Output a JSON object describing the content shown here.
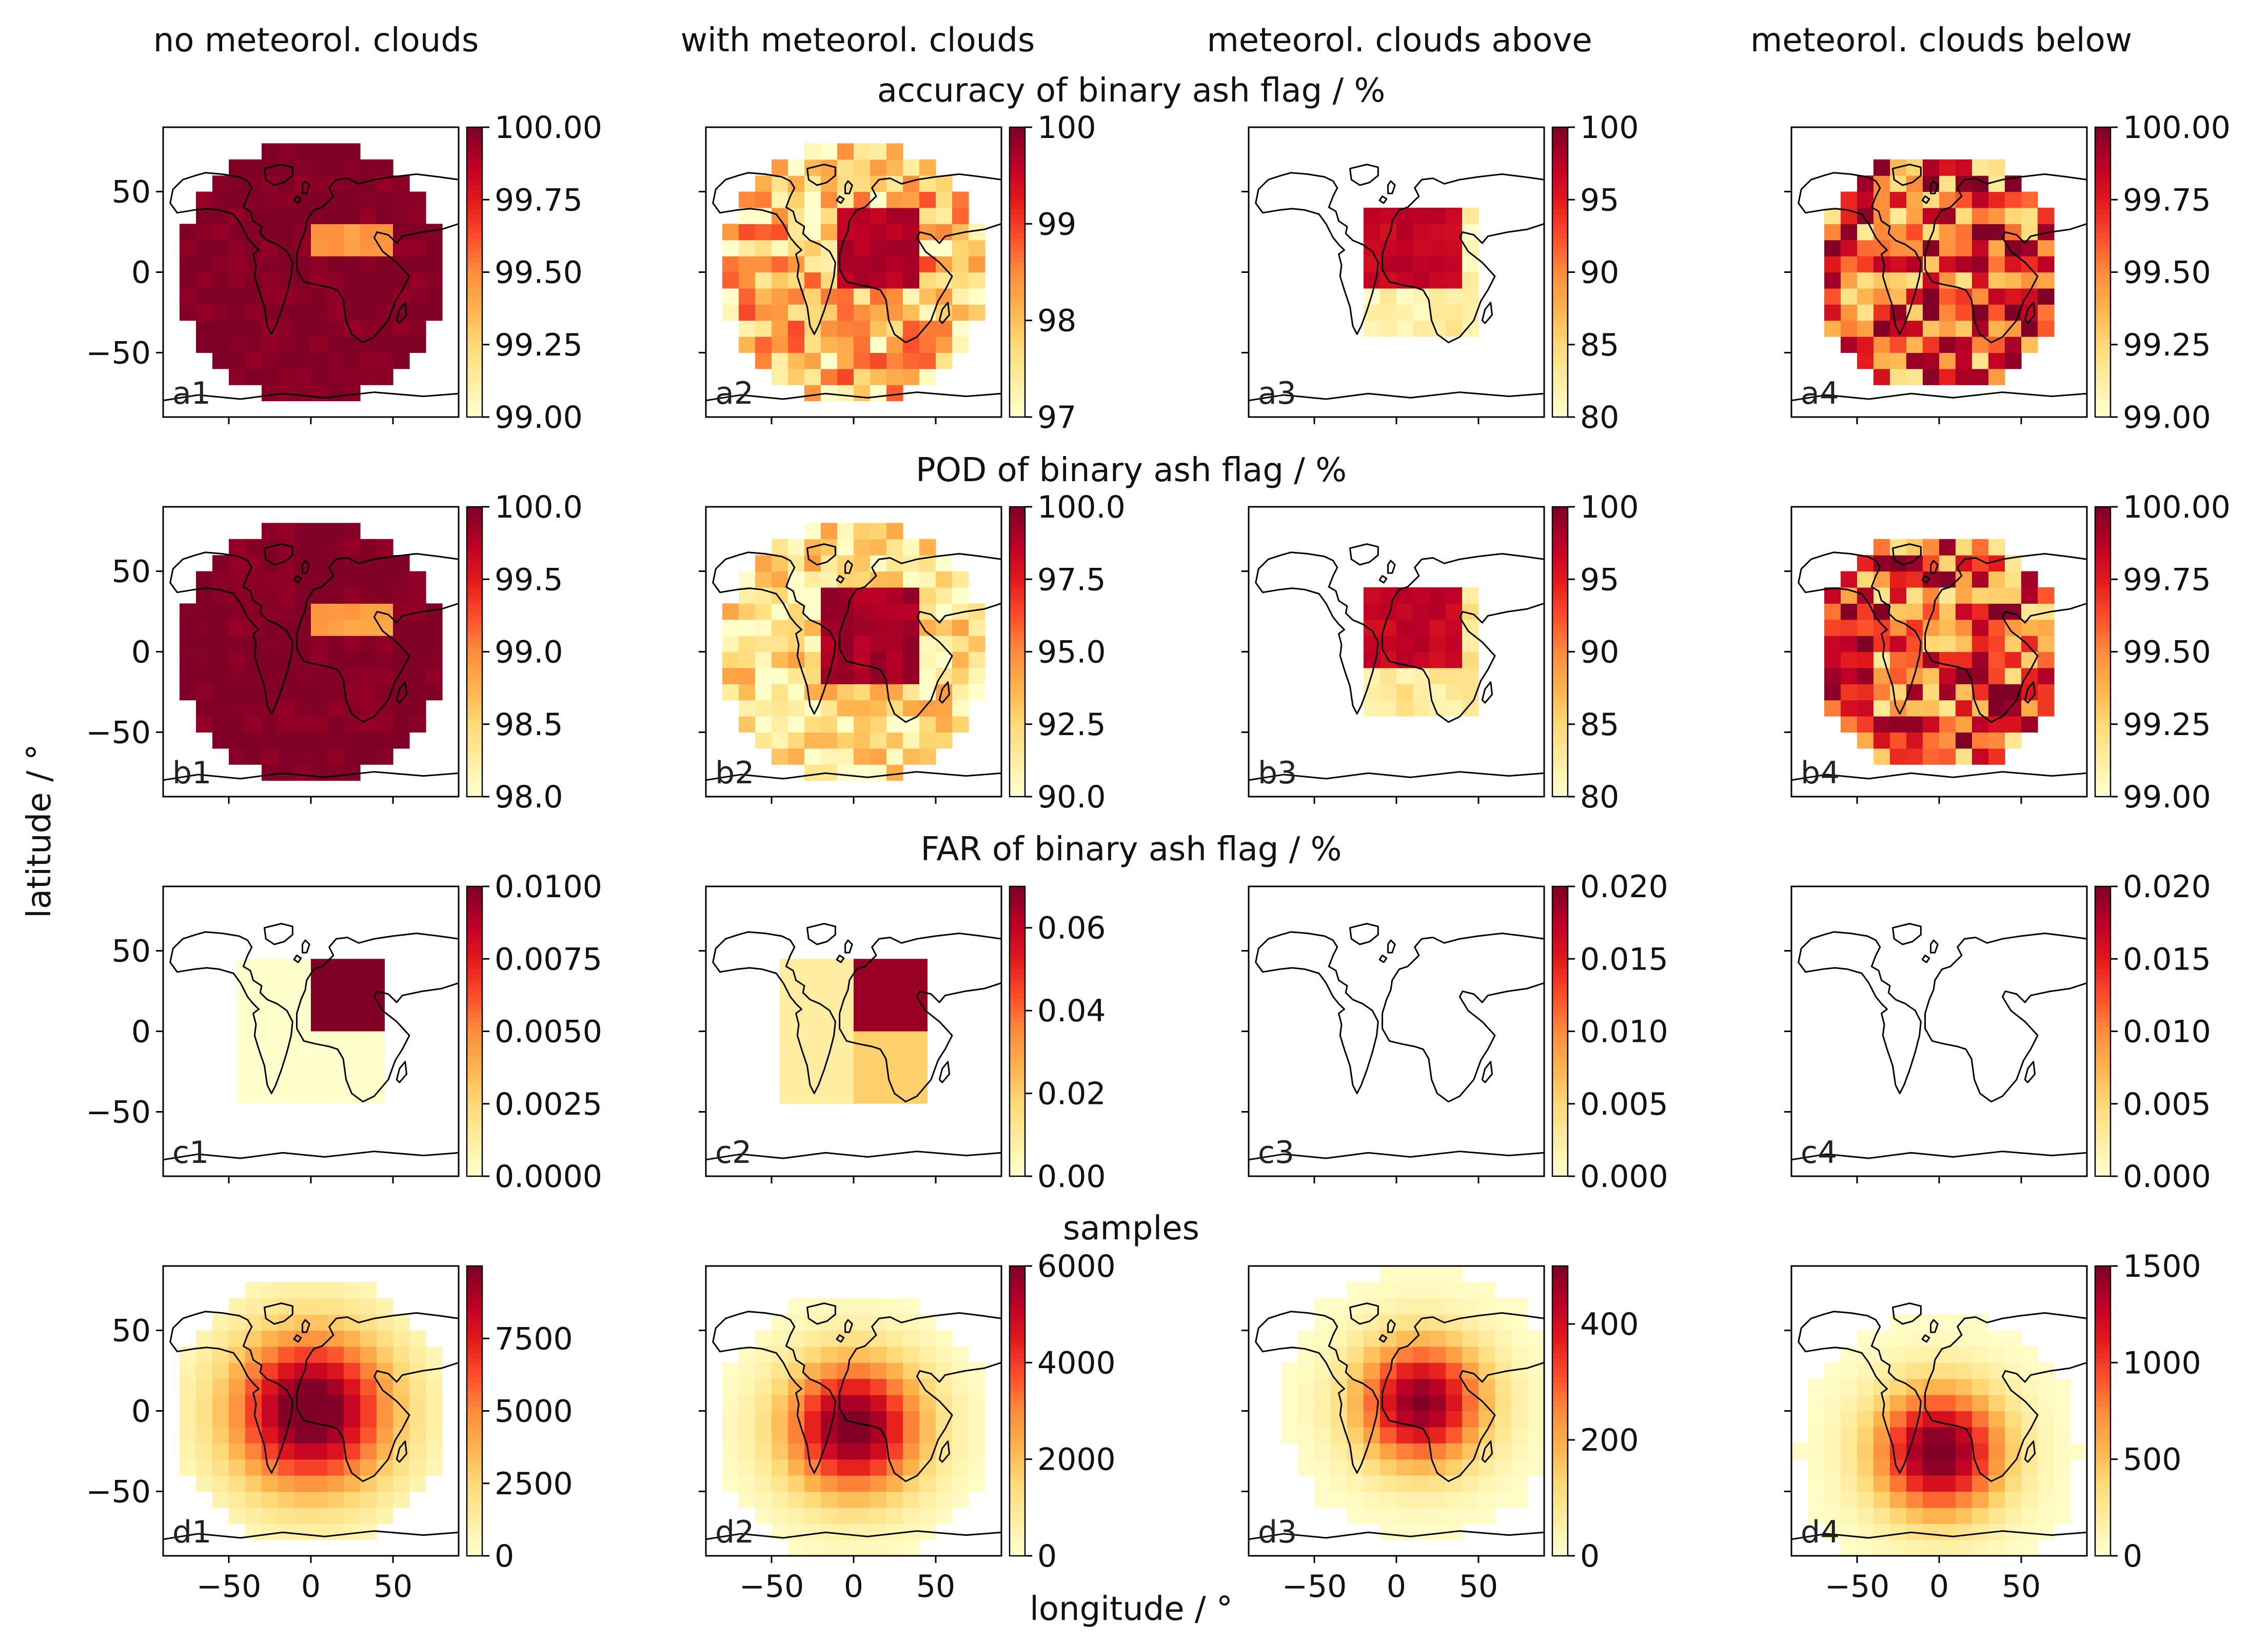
{
  "figure": {
    "column_titles": [
      "no meteorol. clouds",
      "with meteorol. clouds",
      "meteorol. clouds above",
      "meteorol. clouds below"
    ],
    "row_titles": [
      "accuracy of binary ash flag / %",
      "POD of binary ash flag / %",
      "FAR of binary ash flag / %",
      "samples"
    ],
    "xlabel": "longitude / °",
    "ylabel": "latitude / °",
    "x_ticks": [
      "−50",
      "0",
      "50"
    ],
    "y_ticks": [
      "50",
      "0",
      "−50"
    ]
  },
  "colors": {
    "colormap": "YlOrRd",
    "ramp": [
      "#ffffcc",
      "#ffeda0",
      "#fed976",
      "#feb24c",
      "#fd8d3c",
      "#fc4e2a",
      "#e31a1c",
      "#bd0026",
      "#800026"
    ],
    "coastline": "#000000",
    "axes": "#000000",
    "text": "#111111"
  },
  "chart_data": [
    {
      "id": "a1",
      "label": "a1",
      "type": "heatmap",
      "row": 0,
      "col": 0,
      "metric": "accuracy of binary ash flag / %",
      "condition": "no meteorol. clouds",
      "xlim": [
        -90,
        90
      ],
      "ylim": [
        -90,
        90
      ],
      "grid": false,
      "cell_deg": 10,
      "colorbar": {
        "range": [
          99.0,
          100.0
        ],
        "ticks": [
          "99.00",
          "99.25",
          "99.50",
          "99.75",
          "100.00"
        ]
      },
      "field": {
        "kind": "disk",
        "center": [
          0,
          0
        ],
        "radius": 82,
        "base": 1.0,
        "jitter": 0.05,
        "patches": [
          {
            "lon": [
              0,
              50
            ],
            "lat": [
              10,
              30
            ],
            "value": 0.45
          }
        ]
      }
    },
    {
      "id": "a2",
      "label": "a2",
      "type": "heatmap",
      "row": 0,
      "col": 1,
      "metric": "accuracy of binary ash flag / %",
      "condition": "with meteorol. clouds",
      "xlim": [
        -90,
        90
      ],
      "ylim": [
        -90,
        90
      ],
      "grid": false,
      "cell_deg": 10,
      "colorbar": {
        "range": [
          97,
          100
        ],
        "ticks": [
          "97",
          "98",
          "99",
          "100"
        ]
      },
      "field": {
        "kind": "disk",
        "center": [
          0,
          0
        ],
        "radius": 82,
        "base": 0.3,
        "jitter": 0.35,
        "patches": [
          {
            "lon": [
              -10,
              40
            ],
            "lat": [
              -10,
              40
            ],
            "value": 0.9
          },
          {
            "lon": [
              -20,
              10
            ],
            "lat": [
              -90,
              -75
            ],
            "value": 1.0
          }
        ]
      }
    },
    {
      "id": "a3",
      "label": "a3",
      "type": "heatmap",
      "row": 0,
      "col": 2,
      "metric": "accuracy of binary ash flag / %",
      "condition": "meteorol. clouds above",
      "xlim": [
        -90,
        90
      ],
      "ylim": [
        -90,
        90
      ],
      "grid": false,
      "cell_deg": 10,
      "colorbar": {
        "range": [
          80,
          100
        ],
        "ticks": [
          "80",
          "85",
          "90",
          "95",
          "100"
        ]
      },
      "field": {
        "kind": "box",
        "lon": [
          -20,
          50
        ],
        "lat": [
          -40,
          40
        ],
        "base": 0.1,
        "jitter": 0.1,
        "patches": [
          {
            "lon": [
              -20,
              40
            ],
            "lat": [
              -10,
              40
            ],
            "value": 0.85
          }
        ]
      }
    },
    {
      "id": "a4",
      "label": "a4",
      "type": "heatmap",
      "row": 0,
      "col": 3,
      "metric": "accuracy of binary ash flag / %",
      "condition": "meteorol. clouds below",
      "xlim": [
        -90,
        90
      ],
      "ylim": [
        -90,
        90
      ],
      "grid": false,
      "cell_deg": 10,
      "colorbar": {
        "range": [
          99.0,
          100.0
        ],
        "ticks": [
          "99.00",
          "99.25",
          "99.50",
          "99.75",
          "100.00"
        ]
      },
      "field": {
        "kind": "disk",
        "center": [
          0,
          0
        ],
        "radius": 75,
        "base": 0.6,
        "jitter": 0.45,
        "patches": []
      }
    },
    {
      "id": "b1",
      "label": "b1",
      "type": "heatmap",
      "row": 1,
      "col": 0,
      "metric": "POD of binary ash flag / %",
      "condition": "no meteorol. clouds",
      "xlim": [
        -90,
        90
      ],
      "ylim": [
        -90,
        90
      ],
      "grid": false,
      "cell_deg": 10,
      "colorbar": {
        "range": [
          98.0,
          100.0
        ],
        "ticks": [
          "98.0",
          "98.5",
          "99.0",
          "99.5",
          "100.0"
        ]
      },
      "field": {
        "kind": "disk",
        "center": [
          0,
          0
        ],
        "radius": 82,
        "base": 1.0,
        "jitter": 0.05,
        "patches": [
          {
            "lon": [
              0,
              50
            ],
            "lat": [
              10,
              30
            ],
            "value": 0.45
          }
        ]
      }
    },
    {
      "id": "b2",
      "label": "b2",
      "type": "heatmap",
      "row": 1,
      "col": 1,
      "metric": "POD of binary ash flag / %",
      "condition": "with meteorol. clouds",
      "xlim": [
        -90,
        90
      ],
      "ylim": [
        -90,
        90
      ],
      "grid": false,
      "cell_deg": 10,
      "colorbar": {
        "range": [
          90.0,
          100.0
        ],
        "ticks": [
          "90.0",
          "92.5",
          "95.0",
          "97.5",
          "100.0"
        ]
      },
      "field": {
        "kind": "disk",
        "center": [
          0,
          0
        ],
        "radius": 82,
        "base": 0.2,
        "jitter": 0.25,
        "patches": [
          {
            "lon": [
              -20,
              40
            ],
            "lat": [
              -20,
              40
            ],
            "value": 0.92
          },
          {
            "lon": [
              -20,
              10
            ],
            "lat": [
              -90,
              -75
            ],
            "value": 1.0
          }
        ]
      }
    },
    {
      "id": "b3",
      "label": "b3",
      "type": "heatmap",
      "row": 1,
      "col": 2,
      "metric": "POD of binary ash flag / %",
      "condition": "meteorol. clouds above",
      "xlim": [
        -90,
        90
      ],
      "ylim": [
        -90,
        90
      ],
      "grid": false,
      "cell_deg": 10,
      "colorbar": {
        "range": [
          80,
          100
        ],
        "ticks": [
          "80",
          "85",
          "90",
          "95",
          "100"
        ]
      },
      "field": {
        "kind": "box",
        "lon": [
          -20,
          50
        ],
        "lat": [
          -40,
          40
        ],
        "base": 0.15,
        "jitter": 0.1,
        "patches": [
          {
            "lon": [
              -20,
              40
            ],
            "lat": [
              -10,
              40
            ],
            "value": 0.85
          }
        ]
      }
    },
    {
      "id": "b4",
      "label": "b4",
      "type": "heatmap",
      "row": 1,
      "col": 3,
      "metric": "POD of binary ash flag / %",
      "condition": "meteorol. clouds below",
      "xlim": [
        -90,
        90
      ],
      "ylim": [
        -90,
        90
      ],
      "grid": false,
      "cell_deg": 10,
      "colorbar": {
        "range": [
          99.0,
          100.0
        ],
        "ticks": [
          "99.00",
          "99.25",
          "99.50",
          "99.75",
          "100.00"
        ]
      },
      "field": {
        "kind": "disk",
        "center": [
          0,
          0
        ],
        "radius": 75,
        "base": 0.6,
        "jitter": 0.45,
        "patches": []
      }
    },
    {
      "id": "c1",
      "label": "c1",
      "type": "heatmap",
      "row": 2,
      "col": 0,
      "metric": "FAR of binary ash flag / %",
      "condition": "no meteorol. clouds",
      "xlim": [
        -90,
        90
      ],
      "ylim": [
        -90,
        90
      ],
      "grid": false,
      "cell_deg": 45,
      "colorbar": {
        "range": [
          0.0,
          0.01
        ],
        "ticks": [
          "0.0000",
          "0.0025",
          "0.0050",
          "0.0075",
          "0.0100"
        ]
      },
      "field": {
        "kind": "blocks",
        "blocks": [
          {
            "lon": [
              -45,
              0
            ],
            "lat": [
              -45,
              45
            ],
            "value": 0.0
          },
          {
            "lon": [
              0,
              45
            ],
            "lat": [
              -45,
              0
            ],
            "value": 0.0
          },
          {
            "lon": [
              0,
              45
            ],
            "lat": [
              0,
              45
            ],
            "value": 1.0
          }
        ]
      }
    },
    {
      "id": "c2",
      "label": "c2",
      "type": "heatmap",
      "row": 2,
      "col": 1,
      "metric": "FAR of binary ash flag / %",
      "condition": "with meteorol. clouds",
      "xlim": [
        -90,
        90
      ],
      "ylim": [
        -90,
        90
      ],
      "grid": false,
      "cell_deg": 45,
      "colorbar": {
        "range": [
          0.0,
          0.07
        ],
        "ticks": [
          "0.00",
          "0.02",
          "0.04",
          "0.06"
        ]
      },
      "field": {
        "kind": "blocks",
        "blocks": [
          {
            "lon": [
              -45,
              0
            ],
            "lat": [
              -45,
              45
            ],
            "value": 0.12
          },
          {
            "lon": [
              0,
              45
            ],
            "lat": [
              -45,
              0
            ],
            "value": 0.28
          },
          {
            "lon": [
              0,
              45
            ],
            "lat": [
              0,
              45
            ],
            "value": 0.95
          }
        ]
      }
    },
    {
      "id": "c3",
      "label": "c3",
      "type": "heatmap",
      "row": 2,
      "col": 2,
      "metric": "FAR of binary ash flag / %",
      "condition": "meteorol. clouds above",
      "xlim": [
        -90,
        90
      ],
      "ylim": [
        -90,
        90
      ],
      "grid": false,
      "cell_deg": 45,
      "colorbar": {
        "range": [
          0.0,
          0.02
        ],
        "ticks": [
          "0.000",
          "0.005",
          "0.010",
          "0.015",
          "0.020"
        ]
      },
      "field": {
        "kind": "blocks",
        "blocks": []
      }
    },
    {
      "id": "c4",
      "label": "c4",
      "type": "heatmap",
      "row": 2,
      "col": 3,
      "metric": "FAR of binary ash flag / %",
      "condition": "meteorol. clouds below",
      "xlim": [
        -90,
        90
      ],
      "ylim": [
        -90,
        90
      ],
      "grid": false,
      "cell_deg": 45,
      "colorbar": {
        "range": [
          0.0,
          0.02
        ],
        "ticks": [
          "0.000",
          "0.005",
          "0.010",
          "0.015",
          "0.020"
        ]
      },
      "field": {
        "kind": "blocks",
        "blocks": []
      }
    },
    {
      "id": "d1",
      "label": "d1",
      "type": "heatmap",
      "row": 3,
      "col": 0,
      "metric": "samples",
      "condition": "no meteorol. clouds",
      "xlim": [
        -90,
        90
      ],
      "ylim": [
        -90,
        90
      ],
      "grid": false,
      "cell_deg": 10,
      "colorbar": {
        "range": [
          0,
          10000
        ],
        "ticks": [
          "0",
          "2500",
          "5000",
          "7500"
        ]
      },
      "field": {
        "kind": "gauss",
        "center": [
          0,
          0
        ],
        "sigma": 35,
        "radius": 85,
        "peak": 1.1
      }
    },
    {
      "id": "d2",
      "label": "d2",
      "type": "heatmap",
      "row": 3,
      "col": 1,
      "metric": "samples",
      "condition": "with meteorol. clouds",
      "xlim": [
        -90,
        90
      ],
      "ylim": [
        -90,
        90
      ],
      "grid": false,
      "cell_deg": 10,
      "colorbar": {
        "range": [
          0,
          6000
        ],
        "ticks": [
          "0",
          "2000",
          "4000",
          "6000"
        ]
      },
      "field": {
        "kind": "gauss",
        "center": [
          0,
          -10
        ],
        "sigma": 30,
        "radius": 85,
        "peak": 1.05
      }
    },
    {
      "id": "d3",
      "label": "d3",
      "type": "heatmap",
      "row": 3,
      "col": 2,
      "metric": "samples",
      "condition": "meteorol. clouds above",
      "xlim": [
        -90,
        90
      ],
      "ylim": [
        -90,
        90
      ],
      "grid": false,
      "cell_deg": 10,
      "colorbar": {
        "range": [
          0,
          500
        ],
        "ticks": [
          "0",
          "200",
          "400"
        ]
      },
      "field": {
        "kind": "gauss",
        "center": [
          15,
          5
        ],
        "sigma": 28,
        "radius": 85,
        "peak": 1.0
      }
    },
    {
      "id": "d4",
      "label": "d4",
      "type": "heatmap",
      "row": 3,
      "col": 3,
      "metric": "samples",
      "condition": "meteorol. clouds below",
      "xlim": [
        -90,
        90
      ],
      "ylim": [
        -90,
        90
      ],
      "grid": false,
      "cell_deg": 10,
      "colorbar": {
        "range": [
          0,
          1500
        ],
        "ticks": [
          "0",
          "500",
          "1000",
          "1500"
        ]
      },
      "field": {
        "kind": "gauss",
        "center": [
          0,
          -25
        ],
        "sigma": 28,
        "radius": 85,
        "peak": 1.05
      }
    }
  ]
}
